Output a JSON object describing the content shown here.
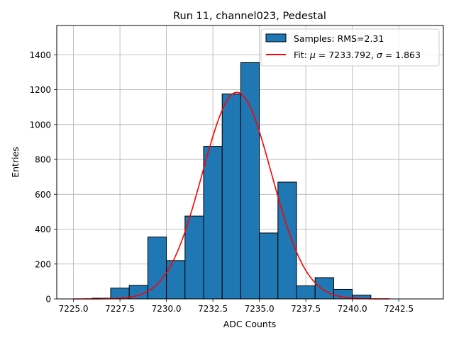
{
  "chart_data": {
    "type": "bar",
    "title": "Run 11, channel023, Pedestal",
    "xlabel": "ADC Counts",
    "ylabel": "Entries",
    "xlim": [
      7224.1,
      7244.9
    ],
    "ylim": [
      0,
      1568
    ],
    "grid": true,
    "legend_position": "top-right",
    "xticks": [
      7225.0,
      7227.5,
      7230.0,
      7232.5,
      7235.0,
      7237.5,
      7240.0,
      7242.5
    ],
    "xtick_labels": [
      "7225.0",
      "7227.5",
      "7230.0",
      "7232.5",
      "7235.0",
      "7237.5",
      "7240.0",
      "7242.5"
    ],
    "yticks": [
      0,
      200,
      400,
      600,
      800,
      1000,
      1200,
      1400
    ],
    "ytick_labels": [
      "0",
      "200",
      "400",
      "600",
      "800",
      "1000",
      "1200",
      "1400"
    ],
    "bins": [
      {
        "x0": 7226.0,
        "x1": 7227.0,
        "value": 4
      },
      {
        "x0": 7227.0,
        "x1": 7228.0,
        "value": 62
      },
      {
        "x0": 7228.0,
        "x1": 7229.0,
        "value": 78
      },
      {
        "x0": 7229.0,
        "x1": 7230.0,
        "value": 355
      },
      {
        "x0": 7230.0,
        "x1": 7231.0,
        "value": 220
      },
      {
        "x0": 7231.0,
        "x1": 7232.0,
        "value": 475
      },
      {
        "x0": 7232.0,
        "x1": 7233.0,
        "value": 875
      },
      {
        "x0": 7233.0,
        "x1": 7234.0,
        "value": 1175
      },
      {
        "x0": 7234.0,
        "x1": 7235.0,
        "value": 1355
      },
      {
        "x0": 7235.0,
        "x1": 7236.0,
        "value": 378
      },
      {
        "x0": 7236.0,
        "x1": 7237.0,
        "value": 670
      },
      {
        "x0": 7237.0,
        "x1": 7238.0,
        "value": 75
      },
      {
        "x0": 7238.0,
        "x1": 7239.0,
        "value": 122
      },
      {
        "x0": 7239.0,
        "x1": 7240.0,
        "value": 55
      },
      {
        "x0": 7240.0,
        "x1": 7241.0,
        "value": 22
      }
    ],
    "fit": {
      "mu": 7233.792,
      "sigma": 1.863,
      "amplitude": 1185,
      "x_range": [
        7225.0,
        7242.0
      ]
    },
    "legend": [
      {
        "label": "Samples: RMS=2.31",
        "kind": "patch"
      },
      {
        "label_prefix": "Fit: ",
        "label_mu": "μ",
        "label_mid": " = 7233.792, ",
        "label_sigma": "σ",
        "label_suffix": " = 1.863",
        "kind": "line"
      }
    ],
    "colors": {
      "bar_fill": "#1f77b4",
      "bar_edge": "#000000",
      "fit_line": "#ff0000",
      "grid": "#b0b0b0"
    }
  }
}
